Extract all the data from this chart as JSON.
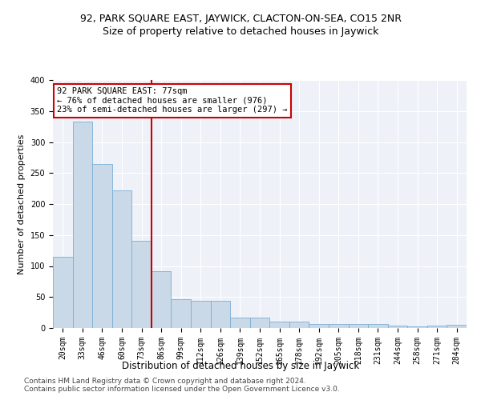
{
  "title1": "92, PARK SQUARE EAST, JAYWICK, CLACTON-ON-SEA, CO15 2NR",
  "title2": "Size of property relative to detached houses in Jaywick",
  "xlabel": "Distribution of detached houses by size in Jaywick",
  "ylabel": "Number of detached properties",
  "categories": [
    "20sqm",
    "33sqm",
    "46sqm",
    "60sqm",
    "73sqm",
    "86sqm",
    "99sqm",
    "112sqm",
    "126sqm",
    "139sqm",
    "152sqm",
    "165sqm",
    "178sqm",
    "192sqm",
    "205sqm",
    "218sqm",
    "231sqm",
    "244sqm",
    "258sqm",
    "271sqm",
    "284sqm"
  ],
  "values": [
    115,
    333,
    265,
    222,
    141,
    92,
    46,
    44,
    44,
    17,
    17,
    10,
    10,
    7,
    6,
    6,
    6,
    4,
    3,
    4,
    5
  ],
  "bar_color": "#c9d9e8",
  "bar_edge_color": "#7aafd4",
  "vline_x": 4.5,
  "vline_color": "#cc0000",
  "annotation_line1": "92 PARK SQUARE EAST: 77sqm",
  "annotation_line2": "← 76% of detached houses are smaller (976)",
  "annotation_line3": "23% of semi-detached houses are larger (297) →",
  "annotation_box_color": "#ffffff",
  "annotation_box_edge_color": "#cc0000",
  "ylim": [
    0,
    400
  ],
  "yticks": [
    0,
    50,
    100,
    150,
    200,
    250,
    300,
    350,
    400
  ],
  "bg_color": "#eef2f8",
  "footer1": "Contains HM Land Registry data © Crown copyright and database right 2024.",
  "footer2": "Contains public sector information licensed under the Open Government Licence v3.0.",
  "title1_fontsize": 9,
  "title2_fontsize": 9,
  "xlabel_fontsize": 8.5,
  "ylabel_fontsize": 8,
  "tick_fontsize": 7,
  "annotation_fontsize": 7.5,
  "footer_fontsize": 6.5
}
